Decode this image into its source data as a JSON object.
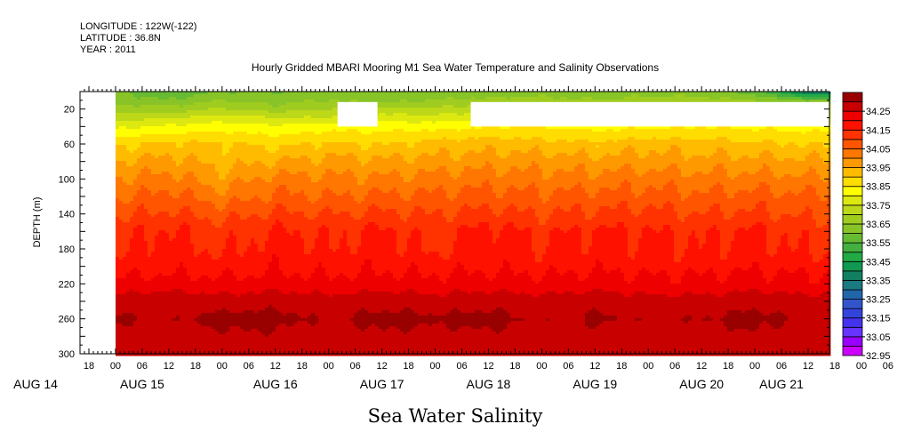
{
  "header": {
    "longitude": "LONGITUDE : 122W(-122)",
    "latitude": "LATITUDE : 36.8N",
    "year": "YEAR : 2011"
  },
  "chart_data": {
    "type": "heatmap",
    "title": "Hourly Gridded MBARI Mooring M1 Sea Water Temperature and Salinity Observations",
    "xlabel": "",
    "ylabel": "DEPTH (m)",
    "bottom_label": "Sea Water Salinity",
    "x_units": "hours since AUG 15 00:00",
    "xlim": [
      -8,
      160.8
    ],
    "ylim": [
      300,
      0
    ],
    "y_ticks": [
      20,
      60,
      100,
      140,
      180,
      220,
      260,
      300
    ],
    "x_hour_labels": [
      "18",
      "00",
      "06",
      "12",
      "18",
      "00",
      "06",
      "12",
      "18",
      "00",
      "06",
      "12",
      "18",
      "00",
      "06",
      "12",
      "18",
      "00",
      "06",
      "12",
      "18",
      "00",
      "06",
      "12",
      "18",
      "00",
      "06",
      "12",
      "18",
      "00",
      "06",
      "12"
    ],
    "x_date_labels": [
      {
        "label": "AUG 14",
        "hour": -18
      },
      {
        "label": "AUG 15",
        "hour": 6
      },
      {
        "label": "AUG 16",
        "hour": 36
      },
      {
        "label": "AUG 17",
        "hour": 60
      },
      {
        "label": "AUG 18",
        "hour": 84
      },
      {
        "label": "AUG 19",
        "hour": 108
      },
      {
        "label": "AUG 20",
        "hour": 132
      },
      {
        "label": "AUG 21",
        "hour": 150
      }
    ],
    "times": [
      0,
      12,
      24,
      36,
      48,
      60,
      72,
      84,
      96,
      108,
      120,
      132,
      144,
      156
    ],
    "depths": [
      0,
      10,
      20,
      30,
      40,
      60,
      80,
      100,
      120,
      140,
      160,
      180,
      200,
      220,
      240,
      260,
      280,
      300
    ],
    "values": [
      [
        33.55,
        33.52,
        33.55,
        33.55,
        33.57,
        33.55,
        33.56,
        33.55,
        33.57,
        33.57,
        33.58,
        33.57,
        33.53,
        33.3
      ],
      [
        33.58,
        33.55,
        33.6,
        33.58,
        33.6,
        33.58,
        33.6,
        33.62,
        33.62,
        33.6,
        33.62,
        33.62,
        33.6,
        33.55
      ],
      [
        33.63,
        33.62,
        33.66,
        33.62,
        33.65,
        33.66,
        33.66,
        33.68,
        33.68,
        33.66,
        33.67,
        33.68,
        33.66,
        33.64
      ],
      [
        33.68,
        33.7,
        33.72,
        33.7,
        33.7,
        33.73,
        33.72,
        33.74,
        33.73,
        33.72,
        33.73,
        33.74,
        33.72,
        33.7
      ],
      [
        33.74,
        33.76,
        33.78,
        33.76,
        33.78,
        33.78,
        33.78,
        33.8,
        33.8,
        33.78,
        33.79,
        33.8,
        33.79,
        33.78
      ],
      [
        33.84,
        33.86,
        33.86,
        33.84,
        33.86,
        33.85,
        33.87,
        33.88,
        33.87,
        33.86,
        33.88,
        33.87,
        33.86,
        33.85
      ],
      [
        33.9,
        33.92,
        33.88,
        33.9,
        33.92,
        33.91,
        33.92,
        33.93,
        33.93,
        33.92,
        33.93,
        33.92,
        33.92,
        33.91
      ],
      [
        33.95,
        33.97,
        33.92,
        33.97,
        33.96,
        33.96,
        33.97,
        33.98,
        33.97,
        33.97,
        33.98,
        33.97,
        33.97,
        33.96
      ],
      [
        33.99,
        34.02,
        33.97,
        34.01,
        34.0,
        34.01,
        34.01,
        34.02,
        34.01,
        34.02,
        34.02,
        34.01,
        34.02,
        34.01
      ],
      [
        34.04,
        34.06,
        34.03,
        34.06,
        34.05,
        34.06,
        34.05,
        34.07,
        34.05,
        34.06,
        34.07,
        34.05,
        34.06,
        34.04
      ],
      [
        34.08,
        34.11,
        34.07,
        34.11,
        34.09,
        34.11,
        34.08,
        34.12,
        34.09,
        34.11,
        34.1,
        34.09,
        34.11,
        34.08
      ],
      [
        34.09,
        34.12,
        34.09,
        34.12,
        34.1,
        34.12,
        34.09,
        34.13,
        34.1,
        34.12,
        34.11,
        34.1,
        34.12,
        34.09
      ],
      [
        34.12,
        34.13,
        34.12,
        34.14,
        34.13,
        34.14,
        34.13,
        34.14,
        34.13,
        34.14,
        34.13,
        34.13,
        34.14,
        34.13
      ],
      [
        34.17,
        34.18,
        34.17,
        34.18,
        34.17,
        34.18,
        34.17,
        34.18,
        34.17,
        34.18,
        34.17,
        34.17,
        34.18,
        34.17
      ],
      [
        34.22,
        34.23,
        34.22,
        34.23,
        34.22,
        34.23,
        34.22,
        34.23,
        34.22,
        34.23,
        34.22,
        34.22,
        34.23,
        34.22
      ],
      [
        34.26,
        34.24,
        34.27,
        34.27,
        34.24,
        34.27,
        34.26,
        34.27,
        34.24,
        34.26,
        34.24,
        34.25,
        34.27,
        34.24
      ],
      [
        34.23,
        34.22,
        34.24,
        34.24,
        34.22,
        34.24,
        34.23,
        34.24,
        34.22,
        34.23,
        34.22,
        34.23,
        34.24,
        34.22
      ],
      [
        34.24,
        34.24,
        34.24,
        34.24,
        34.24,
        34.24,
        34.24,
        34.24,
        34.24,
        34.24,
        34.24,
        34.24,
        34.24,
        34.24
      ]
    ],
    "missing": [
      {
        "t0": 50,
        "t1": 59,
        "d0": 12,
        "d1": 40
      },
      {
        "t0": 80,
        "t1": 160.8,
        "d0": 12,
        "d1": 40
      },
      {
        "t0": -8,
        "t1": 0,
        "d0": 0,
        "d1": 300
      }
    ],
    "colorbar": {
      "labels": [
        "34.25",
        "34.15",
        "34.05",
        "33.95",
        "33.85",
        "33.75",
        "33.65",
        "33.55",
        "33.45",
        "33.35",
        "33.25",
        "33.15",
        "33.05",
        "32.95"
      ],
      "min": 32.95,
      "step": 0.05,
      "colors": [
        "#cc00ff",
        "#9900ff",
        "#6633ff",
        "#4433ee",
        "#3344dd",
        "#3355cc",
        "#2266aa",
        "#1a7a80",
        "#128060",
        "#109950",
        "#22aa44",
        "#44b040",
        "#66bb33",
        "#88c428",
        "#a0cc20",
        "#bcd818",
        "#dde810",
        "#ffff00",
        "#ffdd00",
        "#ffbb00",
        "#ff9900",
        "#ff7700",
        "#ff5500",
        "#ff3300",
        "#ff1100",
        "#ee0000",
        "#c80000",
        "#990000"
      ]
    }
  }
}
